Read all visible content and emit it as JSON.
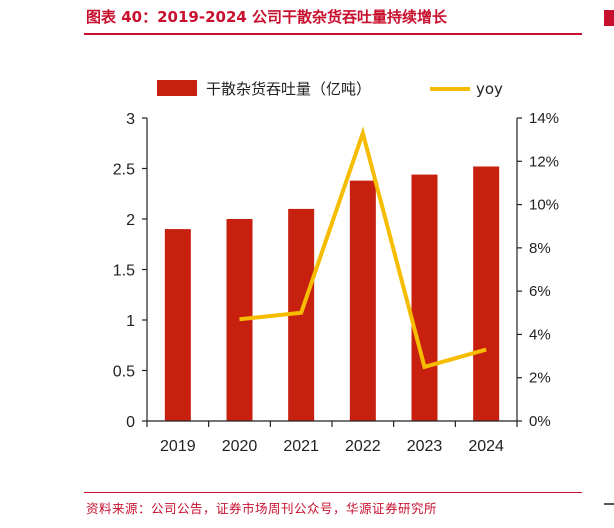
{
  "header": {
    "title": "图表 40：2019-2024 公司干散杂货吞吐量持续增长"
  },
  "footer": {
    "source": "资料来源：公司公告，证券市场周刊公众号，华源证券研究所"
  },
  "colors": {
    "bar": "#c8200f",
    "line": "#f5bc00",
    "accent": "#c8102e"
  },
  "chart_data": {
    "type": "bar",
    "title": "",
    "categories": [
      "2019",
      "2020",
      "2021",
      "2022",
      "2023",
      "2024"
    ],
    "series": [
      {
        "name": "干散杂货吞吐量（亿吨）",
        "type": "bar",
        "axis": "left",
        "values": [
          1.9,
          2.0,
          2.1,
          2.38,
          2.44,
          2.52
        ]
      },
      {
        "name": "yoy",
        "type": "line",
        "axis": "right",
        "values": [
          null,
          4.7,
          5.0,
          13.3,
          2.5,
          3.3
        ]
      }
    ],
    "y_left": {
      "min": 0,
      "max": 3,
      "ticks": [
        "0",
        "0.5",
        "1",
        "1.5",
        "2",
        "2.5",
        "3"
      ]
    },
    "y_right": {
      "min": 0,
      "max": 14,
      "ticks": [
        "0%",
        "2%",
        "4%",
        "6%",
        "8%",
        "10%",
        "12%",
        "14%"
      ]
    },
    "grid": false,
    "legend": "top"
  }
}
